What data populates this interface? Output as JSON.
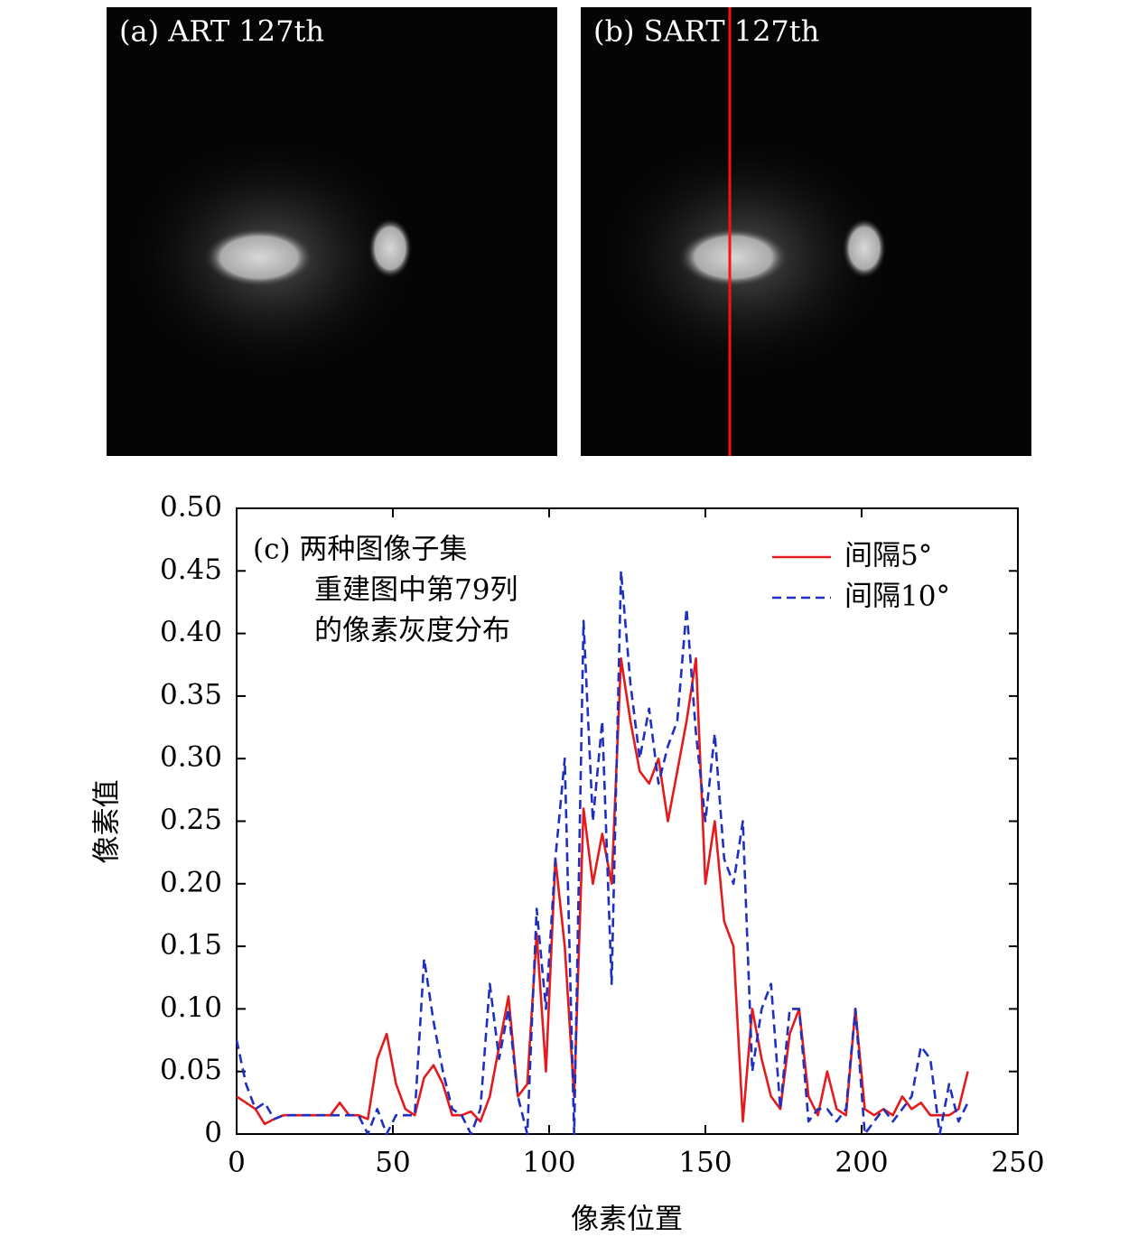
{
  "panels": [
    "(a) ART 127th",
    "(b) SART 127th"
  ],
  "chart_data": {
    "type": "line",
    "annotation": [
      "(c) 两种图像子集",
      "重建图中第79列",
      "的像素灰度分布"
    ],
    "xlabel": "像素位置",
    "ylabel": "像素值",
    "legend": "upper right",
    "x": [
      0,
      3,
      6,
      9,
      12,
      15,
      18,
      21,
      24,
      27,
      30,
      33,
      36,
      39,
      42,
      45,
      48,
      51,
      54,
      57,
      60,
      63,
      66,
      69,
      72,
      75,
      78,
      81,
      84,
      87,
      90,
      93,
      96,
      99,
      102,
      105,
      108,
      111,
      114,
      117,
      120,
      123,
      126,
      129,
      132,
      135,
      138,
      141,
      144,
      147,
      150,
      153,
      156,
      159,
      162,
      165,
      168,
      171,
      174,
      177,
      180,
      183,
      186,
      189,
      192,
      195,
      198,
      201,
      204,
      207,
      210,
      213,
      216,
      219,
      222,
      225,
      228,
      231,
      234
    ],
    "series": [
      {
        "name": "间隔5°",
        "color": "#e41a1c",
        "dash": false,
        "values": [
          0.03,
          0.025,
          0.02,
          0.008,
          0.012,
          0.015,
          0.015,
          0.015,
          0.015,
          0.015,
          0.015,
          0.025,
          0.015,
          0.015,
          0.012,
          0.06,
          0.08,
          0.04,
          0.02,
          0.015,
          0.045,
          0.055,
          0.04,
          0.015,
          0.015,
          0.018,
          0.01,
          0.03,
          0.07,
          0.11,
          0.03,
          0.04,
          0.16,
          0.05,
          0.22,
          0.15,
          0.03,
          0.26,
          0.2,
          0.24,
          0.2,
          0.38,
          0.33,
          0.29,
          0.28,
          0.3,
          0.25,
          0.29,
          0.33,
          0.38,
          0.2,
          0.25,
          0.17,
          0.15,
          0.01,
          0.1,
          0.06,
          0.03,
          0.02,
          0.08,
          0.1,
          0.03,
          0.015,
          0.05,
          0.02,
          0.015,
          0.1,
          0.02,
          0.015,
          0.02,
          0.015,
          0.03,
          0.02,
          0.025,
          0.015,
          0.015,
          0.015,
          0.02,
          0.05
        ]
      },
      {
        "name": "间隔10°",
        "color": "#1f2fbf",
        "dash": true,
        "values": [
          0.075,
          0.04,
          0.02,
          0.025,
          0.012,
          0.015,
          0.015,
          0.015,
          0.015,
          0.015,
          0.015,
          0.015,
          0.015,
          0.015,
          0,
          0.02,
          0,
          0.015,
          0.015,
          0.015,
          0.14,
          0.09,
          0.05,
          0.02,
          0.015,
          0,
          0.02,
          0.12,
          0.06,
          0.1,
          0.03,
          0,
          0.18,
          0.1,
          0.22,
          0.3,
          0,
          0.41,
          0.25,
          0.33,
          0.12,
          0.45,
          0.36,
          0.3,
          0.34,
          0.28,
          0.31,
          0.33,
          0.42,
          0.32,
          0.25,
          0.32,
          0.22,
          0.2,
          0.25,
          0.05,
          0.1,
          0.12,
          0.02,
          0.1,
          0.1,
          0.01,
          0.02,
          0.02,
          0.01,
          0.02,
          0.1,
          0,
          0.01,
          0.02,
          0.01,
          0.02,
          0.03,
          0.07,
          0.06,
          0,
          0.04,
          0.01,
          0.025
        ]
      }
    ],
    "xlim": [
      0,
      250
    ],
    "xticks": [
      0,
      50,
      100,
      150,
      200,
      250
    ],
    "ylim": [
      0,
      0.5
    ],
    "yticks": [
      0,
      0.05,
      {
        "value": 0.1,
        "label": "0.10"
      },
      0.15,
      {
        "value": 0.2,
        "label": "0.20"
      },
      0.25,
      {
        "value": 0.3,
        "label": "0.30"
      },
      0.35,
      {
        "value": 0.4,
        "label": "0.40"
      },
      0.45,
      {
        "value": 0.5,
        "label": "0.50"
      }
    ]
  }
}
